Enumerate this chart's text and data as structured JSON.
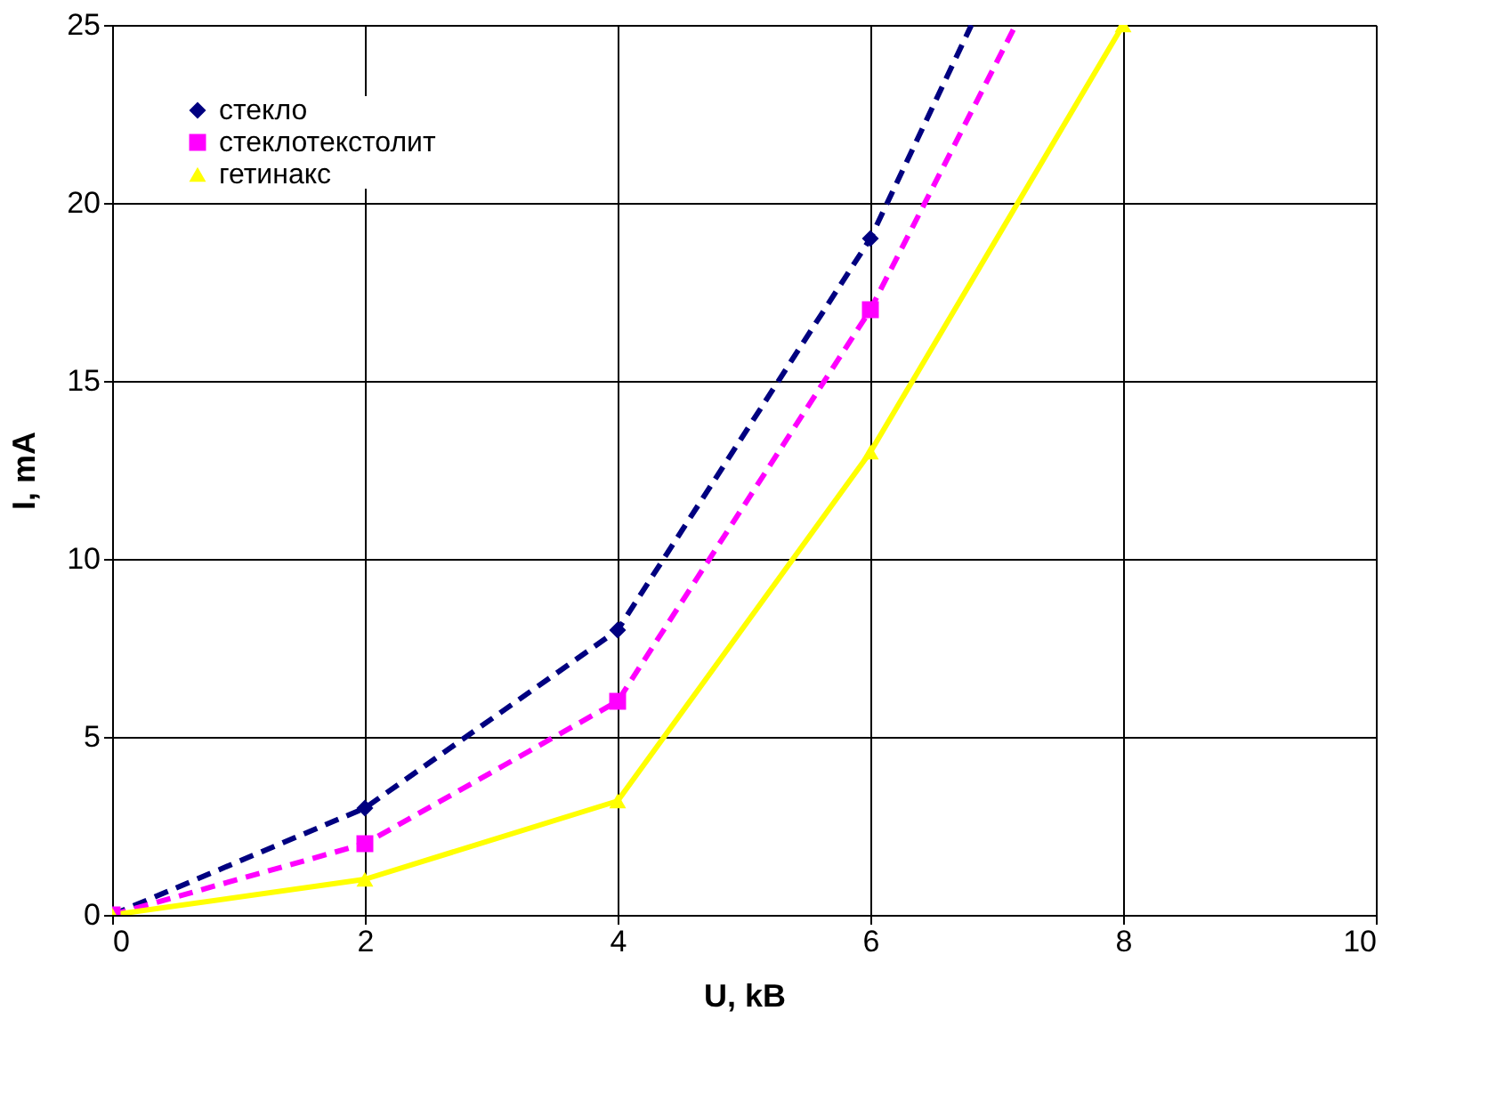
{
  "chart_data": {
    "type": "line",
    "xlabel": "U, kB",
    "ylabel": "I, mA",
    "xlim": [
      0,
      10
    ],
    "ylim": [
      0,
      25
    ],
    "xticks": [
      0,
      2,
      4,
      6,
      8,
      10
    ],
    "yticks": [
      0,
      5,
      10,
      15,
      20,
      25
    ],
    "grid": true,
    "legend": "top left",
    "series": [
      {
        "name": "стекло",
        "color": "#000080",
        "marker": "diamond",
        "line_style": "dashed",
        "x": [
          0,
          2,
          4,
          6,
          6.8
        ],
        "values": [
          0,
          3,
          8,
          19,
          25
        ]
      },
      {
        "name": "стеклотекстолит",
        "color": "#ff00ff",
        "marker": "square",
        "line_style": "dashed",
        "x": [
          0,
          2,
          4,
          6,
          7.15
        ],
        "values": [
          0,
          2,
          6,
          17,
          25
        ]
      },
      {
        "name": "гетинакс",
        "color": "#ffff00",
        "marker": "triangle",
        "line_style": "solid",
        "x": [
          0,
          2,
          4,
          6,
          8
        ],
        "values": [
          0,
          1,
          3.2,
          13,
          25
        ]
      }
    ]
  }
}
